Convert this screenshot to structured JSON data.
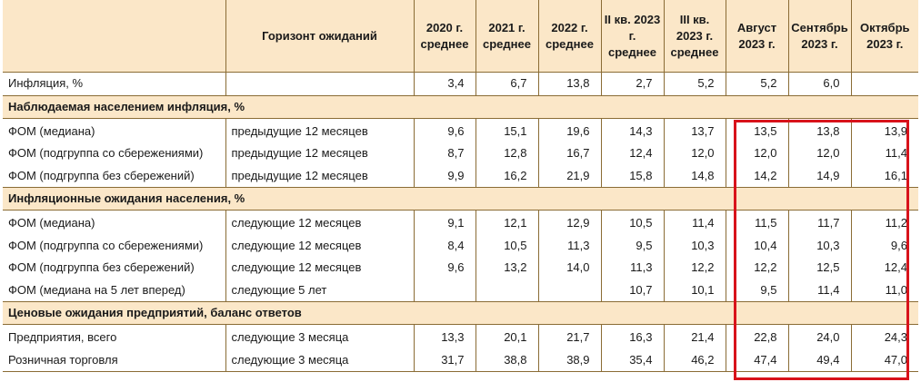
{
  "header": {
    "horizon": "Горизонт ожиданий",
    "cols": [
      "2020 г. среднее",
      "2021 г. среднее",
      "2022 г. среднее",
      "II кв. 2023 г. среднее",
      "III кв. 2023 г. среднее",
      "Август 2023 г.",
      "Сентябрь 2023 г.",
      "Октябрь 2023 г."
    ]
  },
  "inflation": {
    "label": "Инфляция, %",
    "horizon": "",
    "values": [
      "3,4",
      "6,7",
      "13,8",
      "2,7",
      "5,2",
      "5,2",
      "6,0",
      ""
    ]
  },
  "sections": [
    {
      "title": "Наблюдаемая населением инфляция, %",
      "rows": [
        {
          "label": "ФОМ (медиана)",
          "horizon": "предыдущие 12 месяцев",
          "values": [
            "9,6",
            "15,1",
            "19,6",
            "14,3",
            "13,7",
            "13,5",
            "13,8",
            "13,9"
          ]
        },
        {
          "label": "ФОМ (подгруппа со сбережениями)",
          "horizon": "предыдущие 12 месяцев",
          "values": [
            "8,7",
            "12,8",
            "16,7",
            "12,4",
            "12,0",
            "12,0",
            "12,0",
            "11,4"
          ]
        },
        {
          "label": "ФОМ (подгруппа без сбережений)",
          "horizon": "предыдущие 12 месяцев",
          "values": [
            "9,9",
            "16,2",
            "21,9",
            "15,8",
            "14,8",
            "14,2",
            "14,9",
            "16,1"
          ]
        }
      ]
    },
    {
      "title": "Инфляционные ожидания населения, %",
      "rows": [
        {
          "label": "ФОМ (медиана)",
          "horizon": "следующие 12 месяцев",
          "values": [
            "9,1",
            "12,1",
            "12,9",
            "10,5",
            "11,4",
            "11,5",
            "11,7",
            "11,2"
          ]
        },
        {
          "label": "ФОМ (подгруппа со сбережениями)",
          "horizon": "следующие 12 месяцев",
          "values": [
            "8,4",
            "10,5",
            "11,3",
            "9,5",
            "10,3",
            "10,4",
            "10,3",
            "9,6"
          ]
        },
        {
          "label": "ФОМ (подгруппа без сбережений)",
          "horizon": "следующие 12 месяцев",
          "values": [
            "9,6",
            "13,2",
            "14,0",
            "11,3",
            "12,2",
            "12,2",
            "12,5",
            "12,4"
          ]
        },
        {
          "label": "ФОМ (медиана на 5 лет вперед)",
          "horizon": "следующие 5 лет",
          "values": [
            "",
            "",
            "",
            "10,7",
            "10,1",
            "9,5",
            "11,4",
            "11,0"
          ]
        }
      ]
    },
    {
      "title": "Ценовые ожидания предприятий, баланс ответов",
      "rows": [
        {
          "label": "Предприятия, всего",
          "horizon": "следующие 3 месяца",
          "values": [
            "13,3",
            "20,1",
            "21,7",
            "16,3",
            "21,4",
            "22,8",
            "24,0",
            "24,3"
          ]
        },
        {
          "label": "Розничная торговля",
          "horizon": "следующие 3 месяца",
          "values": [
            "31,7",
            "38,8",
            "38,9",
            "35,4",
            "46,2",
            "47,4",
            "49,4",
            "47,0"
          ]
        }
      ]
    }
  ],
  "colors": {
    "header_bg": "#fbe7c8",
    "rule": "#8a6c35",
    "highlight": "#d8131b"
  }
}
